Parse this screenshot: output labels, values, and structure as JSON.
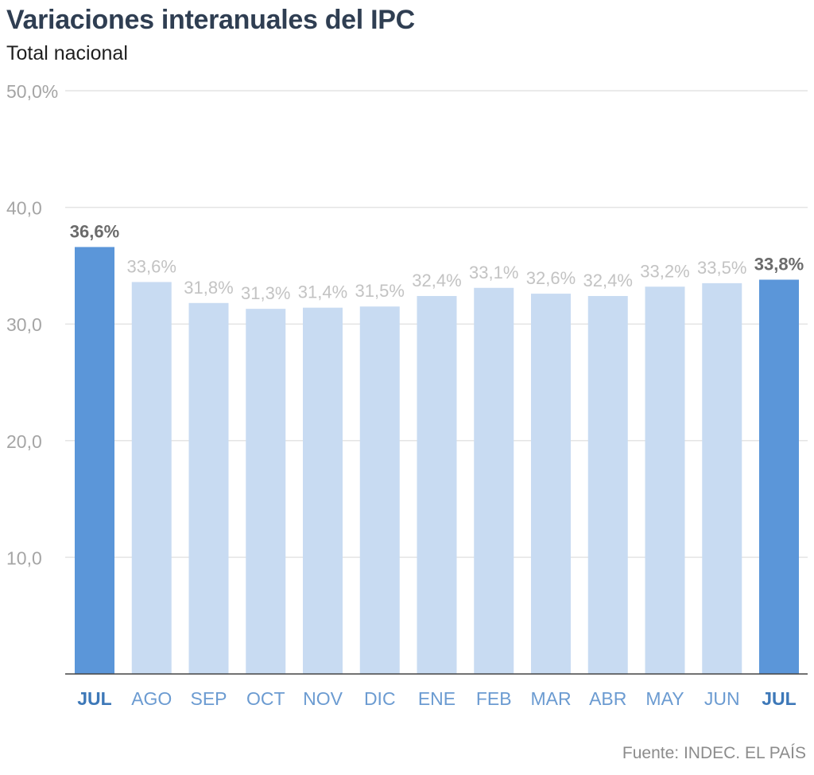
{
  "header": {
    "title": "Variaciones interanuales del IPC",
    "subtitle": "Total nacional"
  },
  "footer": {
    "source": "Fuente: INDEC. EL PAÍS"
  },
  "colors": {
    "highlight": "#5b96d9",
    "base": "#c8dbf2",
    "grid": "#e4e4e4",
    "axis": "#444444"
  },
  "chart_data": {
    "type": "bar",
    "title": "Variaciones interanuales del IPC",
    "subtitle": "Total nacional",
    "xlabel": "",
    "ylabel": "",
    "categories": [
      "JUL",
      "AGO",
      "SEP",
      "OCT",
      "NOV",
      "DIC",
      "ENE",
      "FEB",
      "MAR",
      "ABR",
      "MAY",
      "JUN",
      "JUL"
    ],
    "values": [
      36.6,
      33.6,
      31.8,
      31.3,
      31.4,
      31.5,
      32.4,
      33.1,
      32.6,
      32.4,
      33.2,
      33.5,
      33.8
    ],
    "data_labels": [
      "36,6%",
      "33,6%",
      "31,8%",
      "31,3%",
      "31,4%",
      "31,5%",
      "32,4%",
      "33,1%",
      "32,6%",
      "32,4%",
      "33,2%",
      "33,5%",
      "33,8%"
    ],
    "highlighted": [
      0,
      12
    ],
    "yticks": [
      10,
      20,
      30,
      40,
      50
    ],
    "ytick_labels": [
      "10,0",
      "20,0",
      "30,0",
      "40,0",
      "50,0%"
    ],
    "ylim": [
      0,
      50
    ],
    "grid": true,
    "legend": "none"
  }
}
